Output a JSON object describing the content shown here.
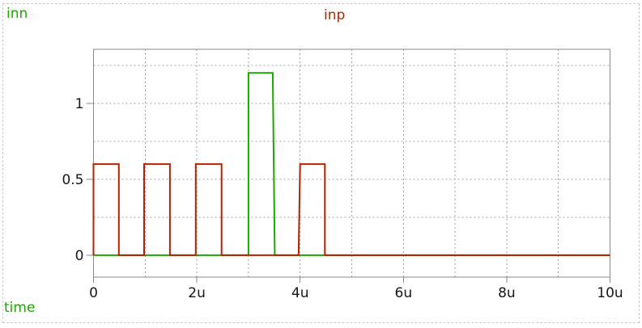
{
  "window": {
    "background": "#ffffff",
    "outer_border_color": "#c9c9c9"
  },
  "signal_labels": {
    "inn": "inn",
    "inp": "inp",
    "time_axis": "time"
  },
  "palette": {
    "inn_green": "#1fa400",
    "inp_red": "#b22400",
    "grid_gray": "#a0a0a0",
    "frame_gray": "#8a8a8a",
    "tick_text": "#161616"
  },
  "chart_data": {
    "type": "line",
    "title": "",
    "xlabel": "time",
    "ylabel": "",
    "x_unit": "u (microseconds)",
    "xlim": [
      0,
      10
    ],
    "ylim": [
      -0.144,
      1.356
    ],
    "grid": true,
    "legend_position": "labels-above-plot",
    "x_ticks": [
      {
        "v": 0,
        "label": "0"
      },
      {
        "v": 2,
        "label": "2u"
      },
      {
        "v": 4,
        "label": "4u"
      },
      {
        "v": 6,
        "label": "6u"
      },
      {
        "v": 8,
        "label": "8u"
      },
      {
        "v": 10,
        "label": "10u"
      }
    ],
    "y_ticks": [
      {
        "v": 0,
        "label": "0"
      },
      {
        "v": 0.5,
        "label": "0.5"
      },
      {
        "v": 1,
        "label": "1"
      }
    ],
    "x_grid": [
      1,
      2,
      3,
      4,
      5,
      6,
      7,
      8,
      9
    ],
    "y_grid": [
      0,
      0.25,
      0.5,
      0.75,
      1,
      1.25
    ],
    "series": [
      {
        "name": "inn",
        "color": "#1fa400",
        "points": [
          [
            0,
            0
          ],
          [
            3,
            0
          ],
          [
            3,
            1.2
          ],
          [
            3.47,
            1.2
          ],
          [
            3.51,
            0
          ],
          [
            10,
            0
          ]
        ]
      },
      {
        "name": "inp",
        "color": "#b22400",
        "points": [
          [
            0,
            0
          ],
          [
            0,
            0.6
          ],
          [
            0.49,
            0.6
          ],
          [
            0.49,
            0
          ],
          [
            0.98,
            0
          ],
          [
            0.98,
            0.6
          ],
          [
            1.48,
            0.6
          ],
          [
            1.48,
            0
          ],
          [
            1.98,
            0
          ],
          [
            1.98,
            0.6
          ],
          [
            2.48,
            0.6
          ],
          [
            2.48,
            0
          ],
          [
            3.97,
            0
          ],
          [
            4,
            0.6
          ],
          [
            4.48,
            0.6
          ],
          [
            4.48,
            0
          ],
          [
            10,
            0
          ]
        ]
      }
    ]
  }
}
